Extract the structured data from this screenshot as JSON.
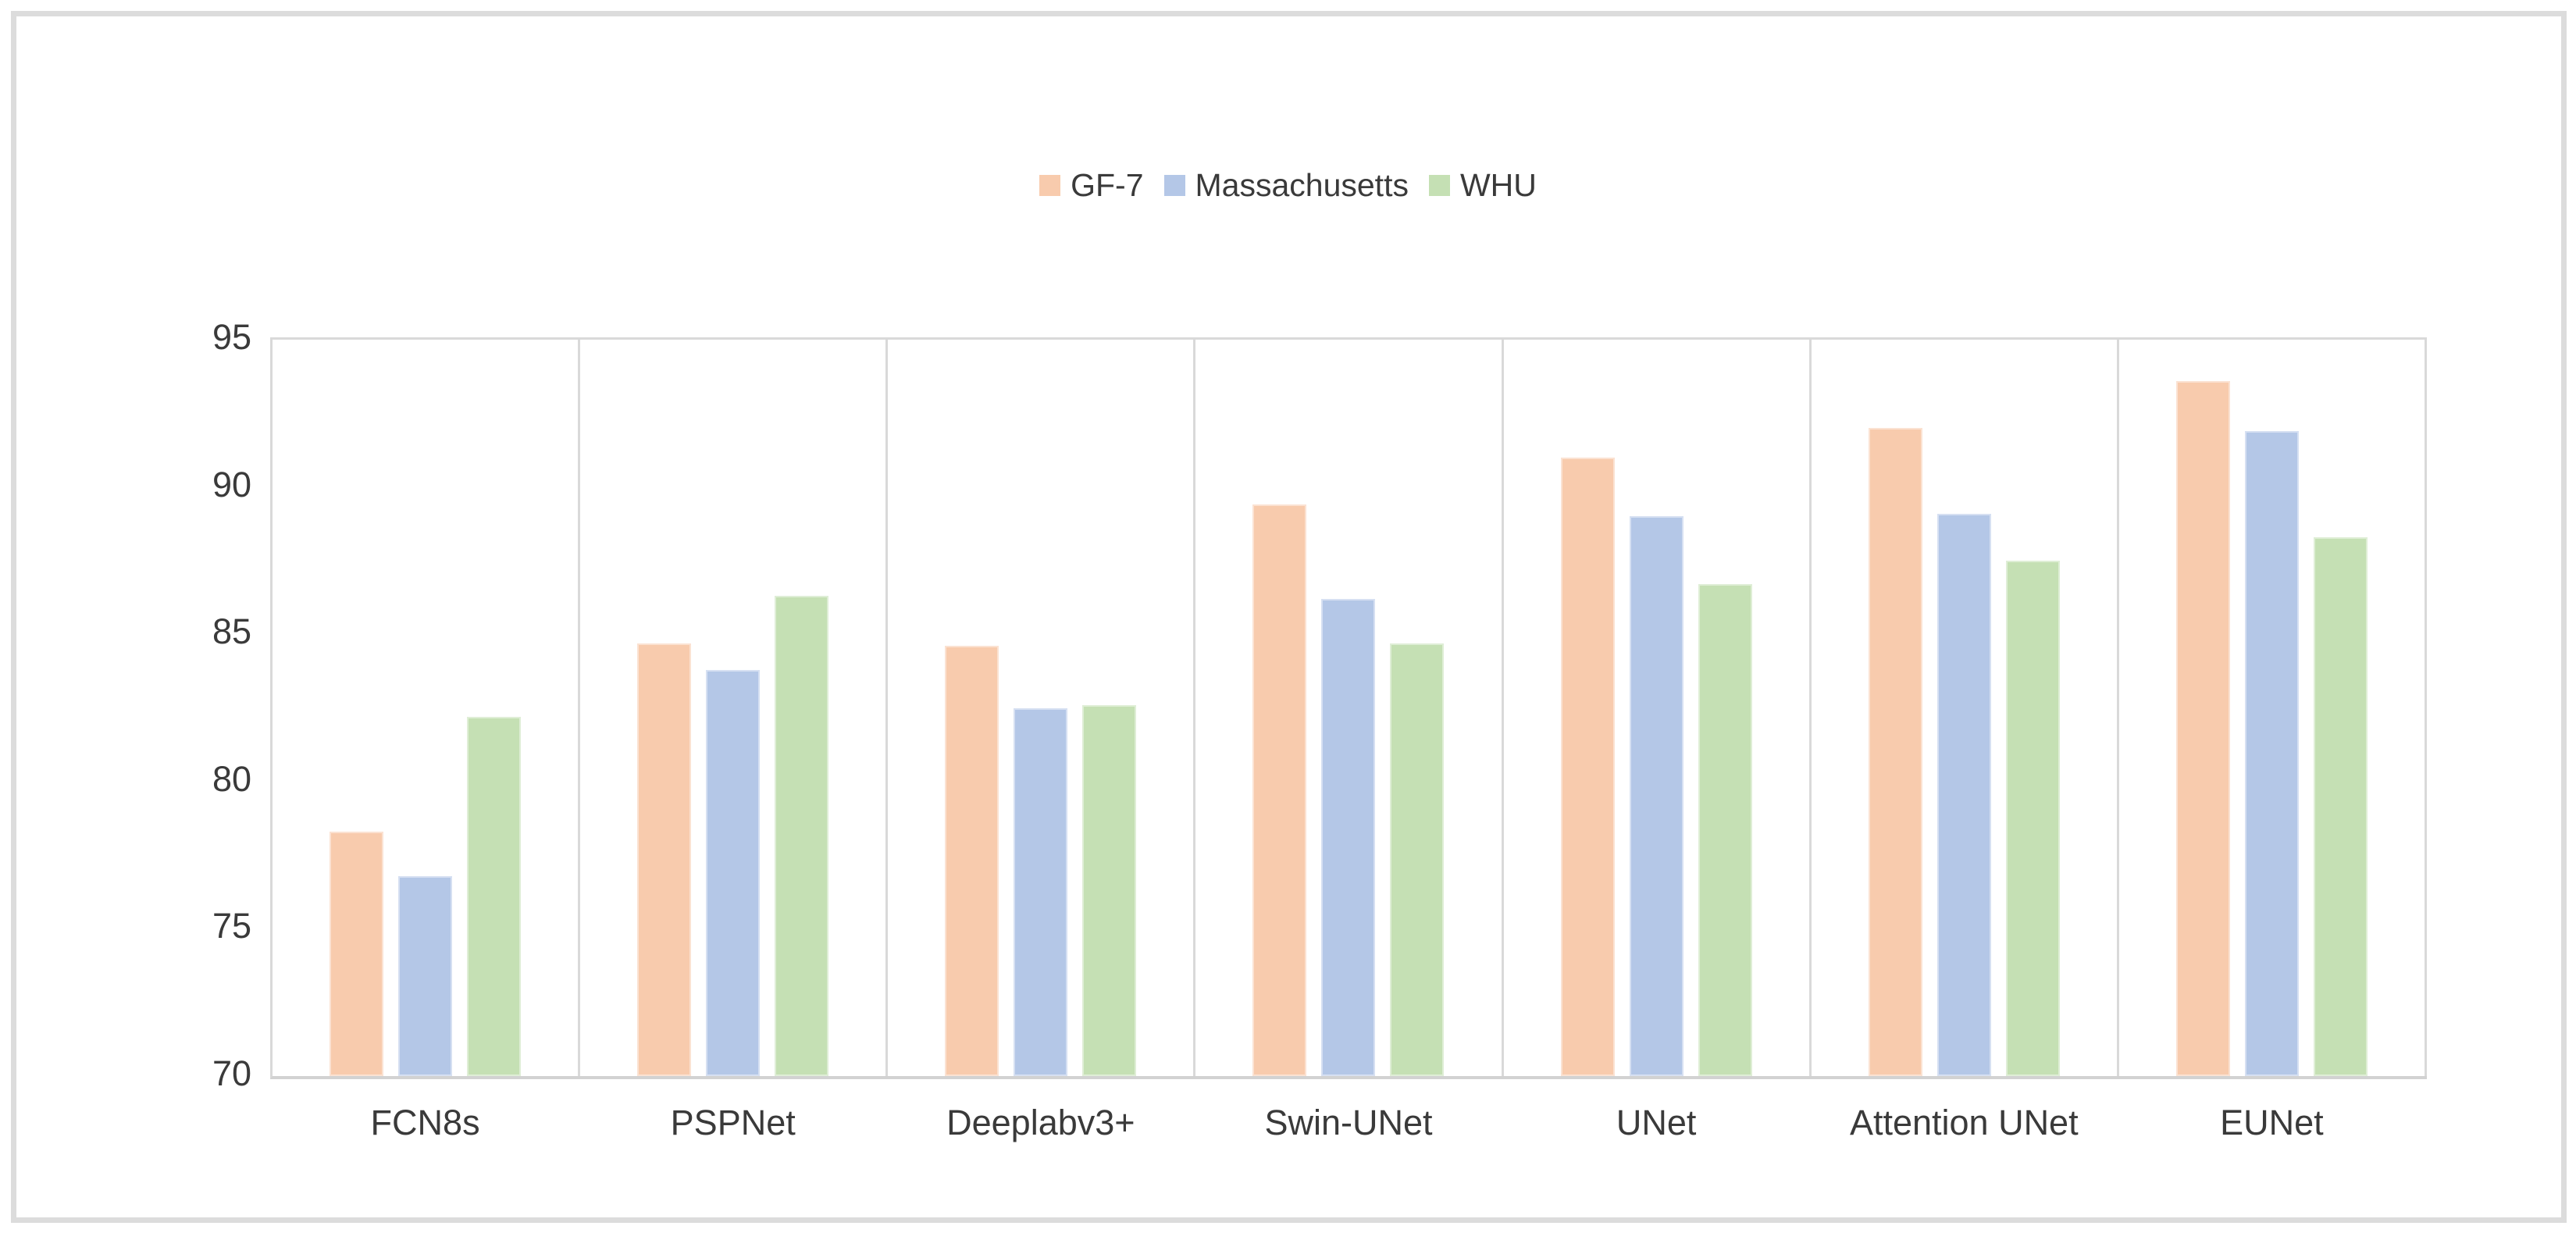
{
  "chart_data": {
    "type": "bar",
    "title": "",
    "xlabel": "",
    "ylabel": "",
    "categories": [
      "FCN8s",
      "PSPNet",
      "Deeplabv3+",
      "Swin-UNet",
      "UNet",
      "Attention UNet",
      "EUNet"
    ],
    "series": [
      {
        "name": "GF-7",
        "color": "#F8CBAD",
        "values": [
          78.3,
          84.7,
          84.6,
          89.4,
          91.0,
          92.0,
          93.6
        ]
      },
      {
        "name": "Massachusetts",
        "color": "#B4C7E7",
        "values": [
          76.8,
          83.8,
          82.5,
          86.2,
          89.0,
          89.1,
          91.9
        ]
      },
      {
        "name": "WHU",
        "color": "#C5E0B4",
        "values": [
          82.2,
          86.3,
          82.6,
          84.7,
          86.7,
          87.5,
          88.3
        ]
      }
    ],
    "ylim": [
      70,
      95
    ],
    "yticks": [
      70,
      75,
      80,
      85,
      90,
      95
    ],
    "grid": "vertical-category-separators-only",
    "legend_position": "top-center",
    "colors": {
      "outer_frame": "#DCDCDC",
      "axis_lines": "#D9D9D9",
      "text": "#3A3A3A",
      "background": "#FFFFFF"
    }
  }
}
